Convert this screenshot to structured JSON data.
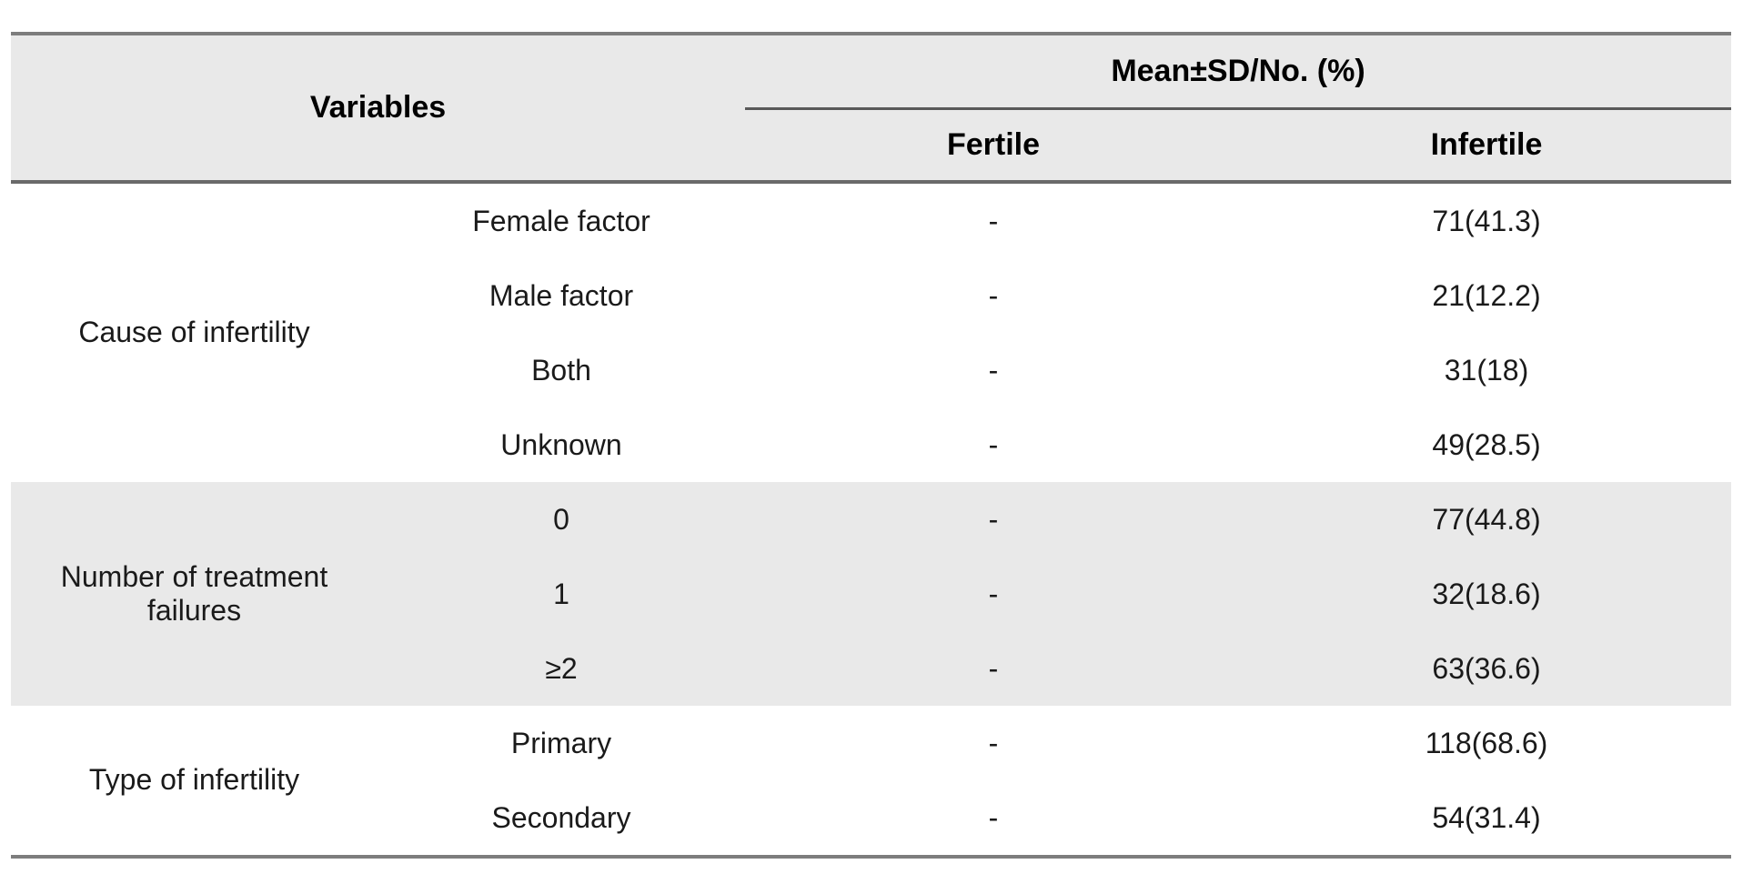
{
  "colors": {
    "page_bg": "#ffffff",
    "header_bg": "#e9e9e9",
    "shaded_row_bg": "#e9e9e9",
    "text": "#1a1a1a",
    "outer_border": "#7d7d7d",
    "header_rule": "#6a6a6a",
    "span_rule": "#595959"
  },
  "table": {
    "header": {
      "variables": "Variables",
      "mean_sd": "Mean±SD/No. (%)",
      "fertile": "Fertile",
      "infertile": "Infertile"
    },
    "groups": [
      {
        "label": "Cause of infertility",
        "rows": [
          {
            "label": "Female factor",
            "fertile": "-",
            "infertile": "71(41.3)"
          },
          {
            "label": "Male factor",
            "fertile": "-",
            "infertile": "21(12.2)"
          },
          {
            "label": "Both",
            "fertile": "-",
            "infertile": "31(18)"
          },
          {
            "label": "Unknown",
            "fertile": "-",
            "infertile": "49(28.5)"
          }
        ]
      },
      {
        "label": "Number of treatment failures",
        "rows": [
          {
            "label": "0",
            "fertile": "-",
            "infertile": "77(44.8)"
          },
          {
            "label": "1",
            "fertile": "-",
            "infertile": "32(18.6)"
          },
          {
            "label": "≥2",
            "fertile": "-",
            "infertile": "63(36.6)"
          }
        ]
      },
      {
        "label": "Type of infertility",
        "rows": [
          {
            "label": "Primary",
            "fertile": "-",
            "infertile": "118(68.6)"
          },
          {
            "label": "Secondary",
            "fertile": "-",
            "infertile": "54(31.4)"
          }
        ]
      }
    ]
  }
}
